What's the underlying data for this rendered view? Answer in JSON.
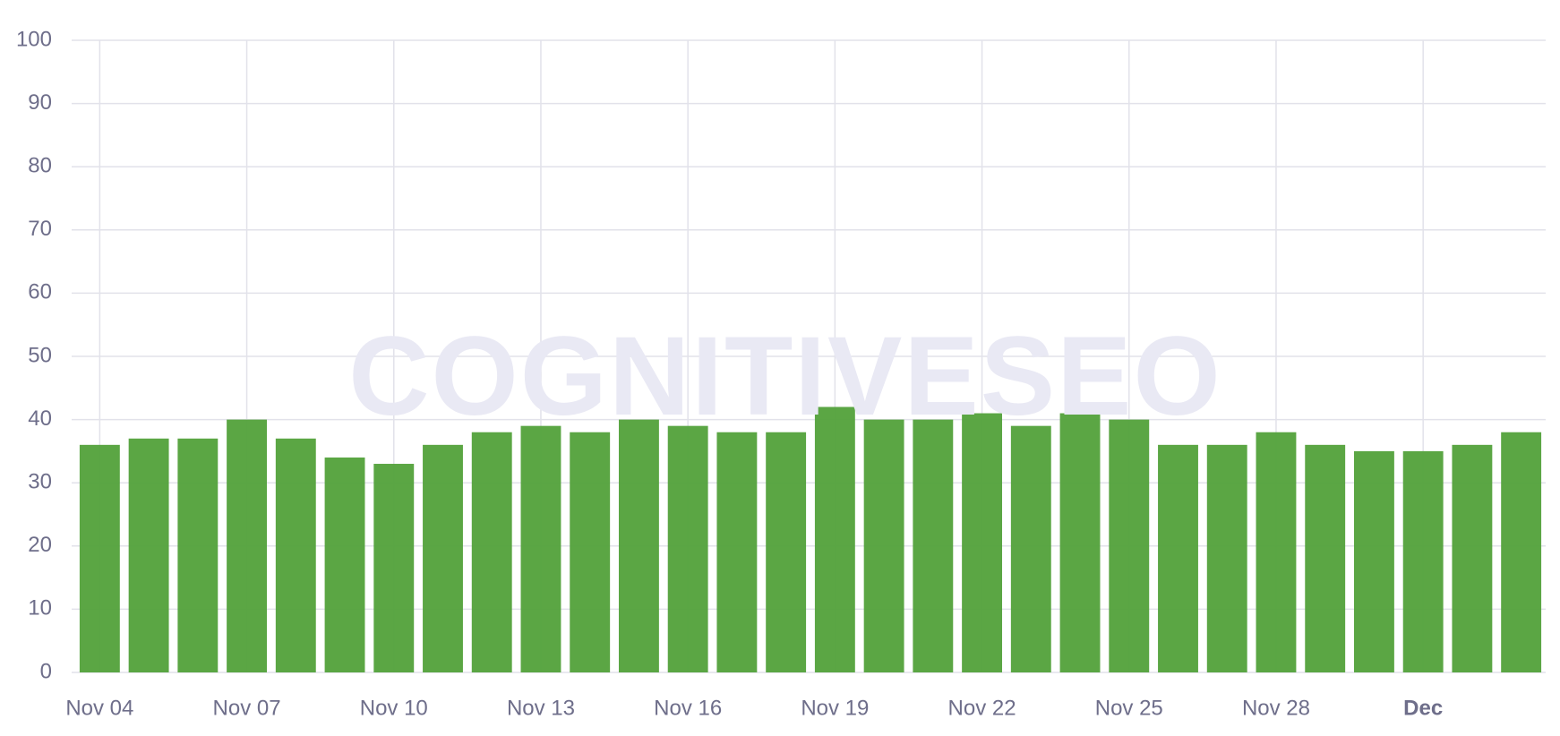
{
  "chart_data": {
    "type": "bar",
    "watermark": "COGNITIVESEO",
    "categories": [
      "Nov 04",
      null,
      null,
      "Nov 07",
      null,
      null,
      "Nov 10",
      null,
      null,
      "Nov 13",
      null,
      null,
      "Nov 16",
      null,
      null,
      "Nov 19",
      null,
      null,
      "Nov 22",
      null,
      null,
      "Nov 25",
      null,
      null,
      "Nov 28",
      null,
      null,
      "Dec",
      null,
      null
    ],
    "values": [
      36,
      37,
      37,
      40,
      37,
      34,
      33,
      36,
      38,
      39,
      38,
      40,
      39,
      38,
      38,
      42,
      40,
      40,
      41,
      39,
      41,
      40,
      36,
      36,
      38,
      36,
      35,
      35,
      36,
      38
    ],
    "color": "#56a33e",
    "ylim": [
      0,
      100
    ],
    "yticks": [
      0,
      10,
      20,
      30,
      40,
      50,
      60,
      70,
      80,
      90,
      100
    ],
    "grid": true
  }
}
